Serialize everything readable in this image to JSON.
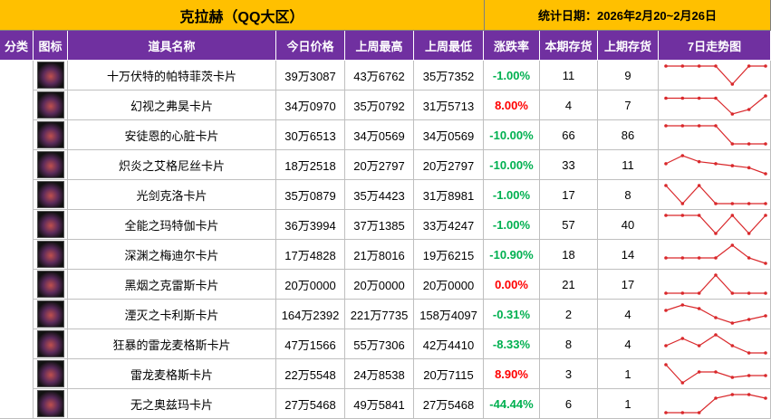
{
  "header": {
    "title": "克拉赫（QQ大区）",
    "date": "统计日期：2026年2月20~2月26日"
  },
  "table": {
    "columns": [
      "分类",
      "图标",
      "道具名称",
      "今日价格",
      "上周最高",
      "上周最低",
      "涨跌率",
      "本期存货",
      "上期存货",
      "7日走势图"
    ],
    "rows": [
      {
        "name": "十万伏特的帕特菲茨卡片",
        "today": "39万3087",
        "high": "43万6762",
        "low": "35万7352",
        "change": "-1.00%",
        "stock": 11,
        "prev_stock": 9,
        "trend": [
          10,
          10,
          10,
          10,
          0,
          10,
          10
        ]
      },
      {
        "name": "幻视之弗昊卡片",
        "today": "34万0970",
        "high": "35万0792",
        "low": "31万5713",
        "change": "8.00%",
        "stock": 4,
        "prev_stock": 7,
        "trend": [
          9,
          9,
          9,
          9,
          2,
          4,
          10
        ]
      },
      {
        "name": "安徒恩的心脏卡片",
        "today": "30万6513",
        "high": "34万0569",
        "low": "34万0569",
        "change": "-10.00%",
        "stock": 66,
        "prev_stock": 86,
        "trend": [
          10,
          10,
          10,
          10,
          0,
          0,
          0
        ]
      },
      {
        "name": "炽炎之艾格尼丝卡片",
        "today": "18万2518",
        "high": "20万2797",
        "low": "20万2797",
        "change": "-10.00%",
        "stock": 33,
        "prev_stock": 11,
        "trend": [
          6,
          10,
          7,
          6,
          5,
          4,
          1
        ]
      },
      {
        "name": "光剑克洛卡片",
        "today": "35万0879",
        "high": "35万4423",
        "low": "31万8981",
        "change": "-1.00%",
        "stock": 17,
        "prev_stock": 8,
        "trend": [
          10,
          0,
          10,
          0,
          0,
          0,
          0
        ]
      },
      {
        "name": "全能之玛特伽卡片",
        "today": "36万3994",
        "high": "37万1385",
        "low": "33万4247",
        "change": "-1.00%",
        "stock": 57,
        "prev_stock": 40,
        "trend": [
          10,
          10,
          10,
          0,
          10,
          0,
          10
        ]
      },
      {
        "name": "深渊之梅迪尔卡片",
        "today": "17万4828",
        "high": "21万8016",
        "low": "19万6215",
        "change": "-10.90%",
        "stock": 18,
        "prev_stock": 14,
        "trend": [
          3,
          3,
          3,
          3,
          10,
          3,
          0
        ]
      },
      {
        "name": "黑烟之克雷斯卡片",
        "today": "20万0000",
        "high": "20万0000",
        "low": "20万0000",
        "change": "0.00%",
        "stock": 21,
        "prev_stock": 17,
        "trend": [
          0,
          0,
          0,
          10,
          0,
          0,
          0
        ]
      },
      {
        "name": "湮灭之卡利斯卡片",
        "today": "164万2392",
        "high": "221万7735",
        "low": "158万4097",
        "change": "-0.31%",
        "stock": 2,
        "prev_stock": 4,
        "trend": [
          7,
          10,
          8,
          3,
          0,
          2,
          4
        ]
      },
      {
        "name": "狂暴的雷龙麦格斯卡片",
        "today": "47万1566",
        "high": "55万7306",
        "low": "42万4410",
        "change": "-8.33%",
        "stock": 8,
        "prev_stock": 4,
        "trend": [
          4,
          8,
          4,
          10,
          4,
          0,
          0
        ]
      },
      {
        "name": "雷龙麦格斯卡片",
        "today": "22万5548",
        "high": "24万8538",
        "low": "20万7115",
        "change": "8.90%",
        "stock": 3,
        "prev_stock": 1,
        "trend": [
          10,
          0,
          6,
          6,
          3,
          4,
          4
        ]
      },
      {
        "name": "无之奥兹玛卡片",
        "today": "27万5468",
        "high": "49万5841",
        "low": "27万5468",
        "change": "-44.44%",
        "stock": 6,
        "prev_stock": 1,
        "trend": [
          0,
          0,
          0,
          8,
          10,
          10,
          8
        ]
      }
    ]
  }
}
